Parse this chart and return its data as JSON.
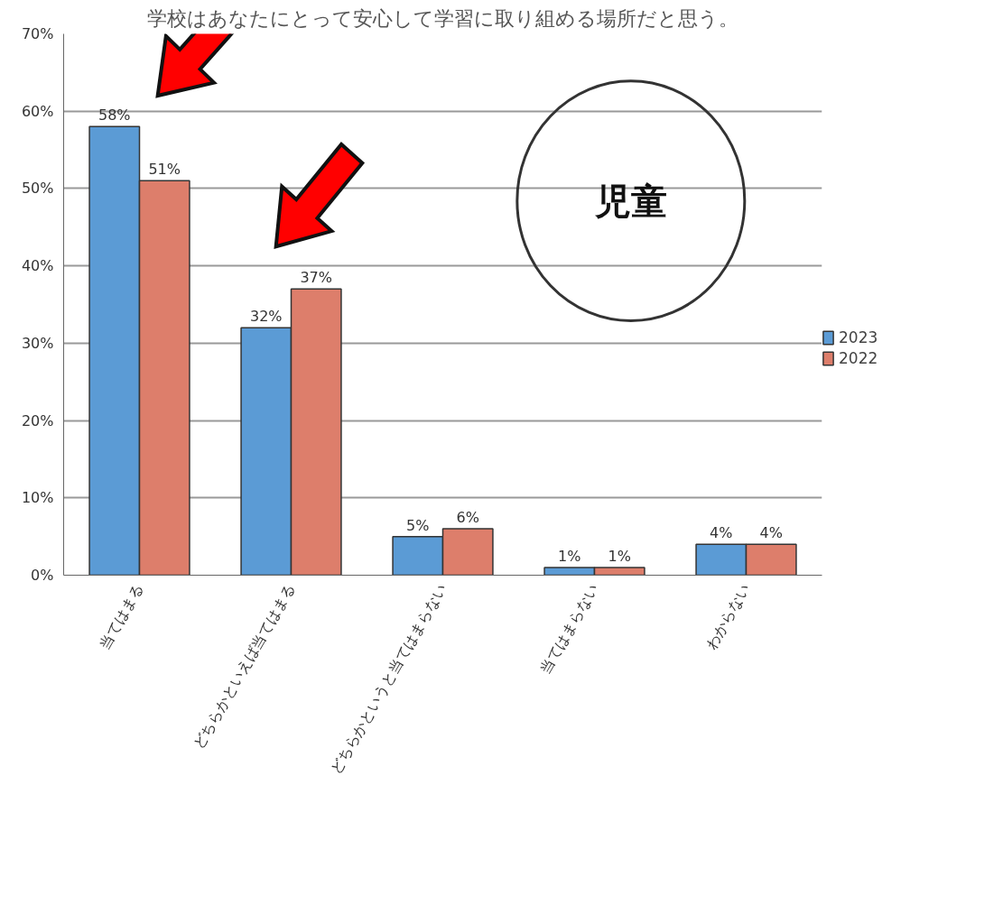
{
  "chart_data": {
    "type": "bar",
    "title": "学校はあなたにとって安心して学習に取り組める場所だと思う。",
    "categories": [
      "当てはまる",
      "どちらかといえば当てはまる",
      "どちらかというと当てはまらない",
      "当てはまらない",
      "わからない"
    ],
    "series": [
      {
        "name": "2023",
        "color": "#5b9bd5",
        "values": [
          58,
          32,
          5,
          1,
          4
        ],
        "value_labels": [
          "58%",
          "32%",
          "5%",
          "1%",
          "4%"
        ]
      },
      {
        "name": "2022",
        "color": "#dd7e6b",
        "values": [
          51,
          37,
          6,
          1,
          4
        ],
        "value_labels": [
          "51%",
          "37%",
          "6%",
          "1%",
          "4%"
        ]
      }
    ],
    "ylim": [
      0,
      70
    ],
    "yticks": [
      {
        "value": 0,
        "label": "0%"
      },
      {
        "value": 10,
        "label": "10%"
      },
      {
        "value": 20,
        "label": "20%"
      },
      {
        "value": 30,
        "label": "30%"
      },
      {
        "value": 40,
        "label": "40%"
      },
      {
        "value": 50,
        "label": "50%"
      },
      {
        "value": 60,
        "label": "60%"
      },
      {
        "value": 70,
        "label": "70%"
      }
    ],
    "grid": "y",
    "legend": "right",
    "annotations": [
      "児童"
    ]
  }
}
